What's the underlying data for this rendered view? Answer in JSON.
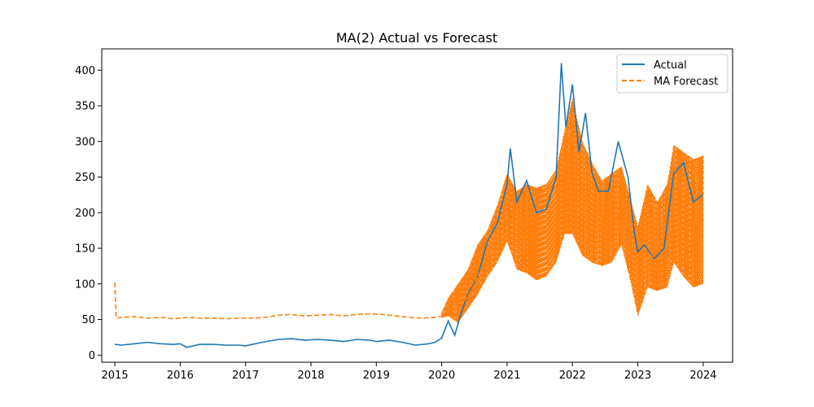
{
  "chart_data": {
    "type": "line",
    "title": "MA(2) Actual vs Forecast",
    "xlabel": "",
    "ylabel": "",
    "xlim": [
      2014.8,
      2024.45
    ],
    "ylim": [
      -10,
      430
    ],
    "x_ticks": [
      2015,
      2016,
      2017,
      2018,
      2019,
      2020,
      2021,
      2022,
      2023,
      2024
    ],
    "x_tick_labels": [
      "2015",
      "2016",
      "2017",
      "2018",
      "2019",
      "2020",
      "2021",
      "2022",
      "2023",
      "2024"
    ],
    "y_ticks": [
      0,
      50,
      100,
      150,
      200,
      250,
      300,
      350,
      400
    ],
    "y_tick_labels": [
      "0",
      "50",
      "100",
      "150",
      "200",
      "250",
      "300",
      "350",
      "400"
    ],
    "grid": false,
    "legend_position": "upper right",
    "series": [
      {
        "name": "Actual",
        "color": "#1f77b4",
        "style": "solid",
        "x": [
          2015.0,
          2015.1,
          2015.3,
          2015.5,
          2015.7,
          2015.9,
          2016.0,
          2016.1,
          2016.3,
          2016.5,
          2016.7,
          2016.9,
          2017.0,
          2017.2,
          2017.5,
          2017.7,
          2017.9,
          2018.1,
          2018.3,
          2018.5,
          2018.7,
          2018.9,
          2019.0,
          2019.2,
          2019.4,
          2019.6,
          2019.8,
          2019.9,
          2020.0,
          2020.1,
          2020.2,
          2020.3,
          2020.4,
          2020.55,
          2020.7,
          2020.85,
          2021.0,
          2021.05,
          2021.15,
          2021.3,
          2021.45,
          2021.6,
          2021.75,
          2021.83,
          2021.9,
          2022.0,
          2022.1,
          2022.2,
          2022.3,
          2022.4,
          2022.55,
          2022.7,
          2022.85,
          2022.95,
          2023.0,
          2023.1,
          2023.25,
          2023.4,
          2023.55,
          2023.7,
          2023.85,
          2024.0
        ],
        "values": [
          15,
          14,
          16,
          18,
          16,
          15,
          16,
          11,
          15,
          15,
          14,
          14,
          13,
          17,
          22,
          23,
          21,
          22,
          21,
          19,
          22,
          21,
          19,
          21,
          18,
          14,
          16,
          18,
          24,
          48,
          28,
          60,
          85,
          110,
          160,
          185,
          240,
          290,
          215,
          245,
          200,
          205,
          250,
          410,
          320,
          380,
          285,
          340,
          255,
          230,
          230,
          300,
          250,
          170,
          145,
          155,
          135,
          150,
          255,
          270,
          215,
          225
        ]
      },
      {
        "name": "MA Forecast",
        "color": "#ff7f0e",
        "style": "dashed",
        "x": [
          2015.0,
          2015.02,
          2015.1,
          2015.3,
          2015.5,
          2015.7,
          2015.9,
          2016.1,
          2016.3,
          2016.5,
          2016.7,
          2016.9,
          2017.1,
          2017.3,
          2017.5,
          2017.7,
          2017.9,
          2018.1,
          2018.3,
          2018.5,
          2018.7,
          2018.9,
          2019.1,
          2019.3,
          2019.5,
          2019.7,
          2019.9,
          2020.0,
          2020.1,
          2020.2,
          2020.3,
          2020.45,
          2020.6,
          2020.75,
          2020.9,
          2021.0,
          2021.15,
          2021.3,
          2021.45,
          2021.6,
          2021.75,
          2021.88,
          2022.0,
          2022.15,
          2022.3,
          2022.45,
          2022.6,
          2022.75,
          2022.9,
          2023.0,
          2023.15,
          2023.3,
          2023.45,
          2023.55,
          2023.7,
          2023.85,
          2024.0
        ],
        "values": [
          102,
          52,
          53,
          54,
          52,
          53,
          51,
          53,
          52,
          52,
          51,
          52,
          52,
          53,
          56,
          57,
          55,
          56,
          57,
          55,
          57,
          58,
          57,
          55,
          53,
          52,
          53,
          55,
          58,
          75,
          70,
          90,
          120,
          140,
          165,
          200,
          175,
          190,
          165,
          180,
          200,
          255,
          290,
          230,
          210,
          195,
          175,
          205,
          150,
          120,
          145,
          130,
          140,
          200,
          210,
          175,
          190
        ]
      }
    ],
    "forecast_band": {
      "x": [
        2020.0,
        2020.1,
        2020.25,
        2020.4,
        2020.55,
        2020.7,
        2020.85,
        2021.0,
        2021.15,
        2021.3,
        2021.45,
        2021.6,
        2021.75,
        2021.88,
        2022.0,
        2022.15,
        2022.3,
        2022.45,
        2022.6,
        2022.75,
        2022.9,
        2023.0,
        2023.15,
        2023.3,
        2023.45,
        2023.55,
        2023.7,
        2023.85,
        2024.0
      ],
      "low": [
        52,
        55,
        45,
        65,
        85,
        110,
        130,
        160,
        120,
        115,
        105,
        110,
        130,
        170,
        170,
        140,
        130,
        125,
        130,
        155,
        100,
        55,
        95,
        90,
        95,
        130,
        110,
        95,
        100
      ],
      "high": [
        60,
        80,
        100,
        120,
        155,
        175,
        210,
        255,
        230,
        240,
        235,
        240,
        260,
        315,
        360,
        300,
        270,
        245,
        255,
        265,
        215,
        180,
        240,
        215,
        240,
        295,
        285,
        275,
        280
      ]
    }
  }
}
